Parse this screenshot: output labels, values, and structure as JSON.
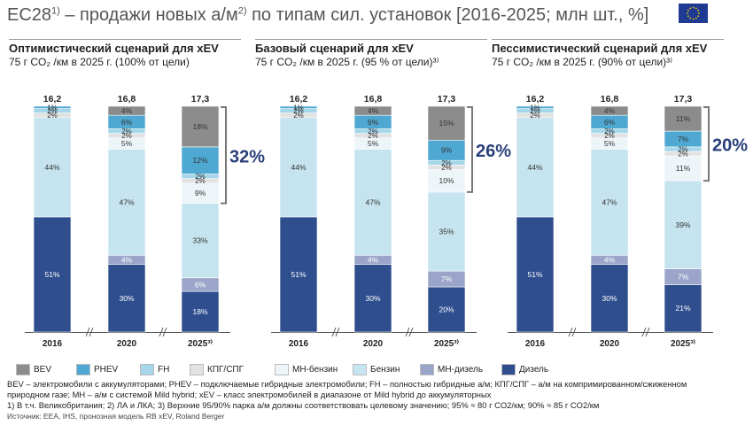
{
  "header": {
    "title_main": "EC28",
    "title_sup1": "1)",
    "title_mid": " – продажи новых а/м",
    "title_sup2": "2)",
    "title_end": " по типам сил. установок [2016-2025; млн шт., %]"
  },
  "colors": {
    "BEV": "#8c8c8c",
    "PHEV": "#4fa8d2",
    "FH": "#a6d6ea",
    "CNG": "#e2e2e2",
    "MH_petrol": "#edf5f9",
    "Petrol": "#c6e4ef",
    "MH_diesel": "#9aa5c9",
    "Diesel": "#2f4e8e",
    "bracket": "#777777",
    "highlight": "#2a3f7a"
  },
  "legend": {
    "items": [
      {
        "key": "BEV",
        "label": "BEV"
      },
      {
        "key": "PHEV",
        "label": "PHEV"
      },
      {
        "key": "FH",
        "label": "FH"
      },
      {
        "key": "CNG",
        "label": "КПГ/СПГ"
      },
      {
        "key": "MH_petrol",
        "label": "MH-бензин"
      },
      {
        "key": "Petrol",
        "label": "Бензин"
      },
      {
        "key": "MH_diesel",
        "label": "MH-дизель"
      },
      {
        "key": "Diesel",
        "label": "Дизель"
      }
    ]
  },
  "footnotes": {
    "line1": "BEV – электромобили с аккумуляторами; PHEV – подключаемые гибридные электромобили; FH – полностью гибридные а/м; КПГ/СПГ – а/м на комприми­рованном/сжиженном",
    "line2": "природном газе; MH – а/м с системой Mild hybrid; xEV – класс электромобилей в диапазоне от Mild hybrid до аккумуляторных",
    "line3": "1) В т.ч. Великобритания; 2) ЛА и ЛКА; 3) Верхние 95/90% парка а/м должны соответствовать целевому значению; 95% ≈ 80 г CO2/км; 90% ≈ 85 г CO2/км",
    "source": "Источник: EEA, IHS, пронозная модель RB xEV, Roland Berger"
  },
  "chart_data": [
    {
      "type": "bar",
      "title": "Оптимистический сценарий для xEV",
      "subtitle": "75 г CO₂ /км в 2025 г. (100% от цели)",
      "categories": [
        "2016",
        "2020",
        "2025"
      ],
      "category_labels": [
        "2016",
        "2020",
        "2025³⁾"
      ],
      "totals": [
        "16,2",
        "16,8",
        "17,3"
      ],
      "stack_order": [
        "Diesel",
        "MH_diesel",
        "Petrol",
        "MH_petrol",
        "CNG",
        "FH",
        "PHEV",
        "BEV"
      ],
      "series": [
        {
          "key": "Diesel",
          "values": [
            51,
            30,
            18
          ],
          "labels": [
            "51%",
            "30%",
            "18%"
          ]
        },
        {
          "key": "MH_diesel",
          "values": [
            0,
            4,
            6
          ],
          "labels": [
            "",
            "4%",
            "6%"
          ]
        },
        {
          "key": "Petrol",
          "values": [
            44,
            47,
            33
          ],
          "labels": [
            "44%",
            "47%",
            "33%"
          ]
        },
        {
          "key": "MH_petrol",
          "values": [
            0,
            5,
            9
          ],
          "labels": [
            "",
            "5%",
            "9%"
          ]
        },
        {
          "key": "CNG",
          "values": [
            2,
            2,
            2
          ],
          "labels": [
            "2%",
            "2%",
            "2%"
          ]
        },
        {
          "key": "FH",
          "values": [
            2,
            2,
            2
          ],
          "labels": [
            "2%",
            "2%",
            "2%"
          ]
        },
        {
          "key": "PHEV",
          "values": [
            1,
            6,
            12
          ],
          "labels": [
            "1%",
            "6%",
            "12%"
          ]
        },
        {
          "key": "BEV",
          "values": [
            0,
            4,
            18
          ],
          "labels": [
            "",
            "4%",
            "18%"
          ]
        }
      ],
      "xev_share": "32%"
    },
    {
      "type": "bar",
      "title": "Базовый сценарий для xEV",
      "subtitle": "75 г CO₂ /км в 2025 г. (95 % от цели)³⁾",
      "categories": [
        "2016",
        "2020",
        "2025"
      ],
      "category_labels": [
        "2016",
        "2020",
        "2025³⁾"
      ],
      "totals": [
        "16,2",
        "16,8",
        "17,3"
      ],
      "stack_order": [
        "Diesel",
        "MH_diesel",
        "Petrol",
        "MH_petrol",
        "CNG",
        "FH",
        "PHEV",
        "BEV"
      ],
      "series": [
        {
          "key": "Diesel",
          "values": [
            51,
            30,
            20
          ],
          "labels": [
            "51%",
            "30%",
            "20%"
          ]
        },
        {
          "key": "MH_diesel",
          "values": [
            0,
            4,
            7
          ],
          "labels": [
            "",
            "4%",
            "7%"
          ]
        },
        {
          "key": "Petrol",
          "values": [
            44,
            47,
            35
          ],
          "labels": [
            "44%",
            "47%",
            "35%"
          ]
        },
        {
          "key": "MH_petrol",
          "values": [
            0,
            5,
            10
          ],
          "labels": [
            "",
            "5%",
            "10%"
          ]
        },
        {
          "key": "CNG",
          "values": [
            2,
            2,
            2
          ],
          "labels": [
            "2%",
            "2%",
            "2%"
          ]
        },
        {
          "key": "FH",
          "values": [
            2,
            2,
            2
          ],
          "labels": [
            "2%",
            "2%",
            "2%"
          ]
        },
        {
          "key": "PHEV",
          "values": [
            1,
            6,
            9
          ],
          "labels": [
            "1%",
            "6%",
            "9%"
          ]
        },
        {
          "key": "BEV",
          "values": [
            0,
            4,
            15
          ],
          "labels": [
            "",
            "4%",
            "15%"
          ]
        }
      ],
      "xev_share": "26%"
    },
    {
      "type": "bar",
      "title": "Пессимистический сценарий для xEV",
      "subtitle": "75 г CO₂ /км в 2025 г. (90% от цели)³⁾",
      "categories": [
        "2016",
        "2020",
        "2025"
      ],
      "category_labels": [
        "2016",
        "2020",
        "2025³⁾"
      ],
      "totals": [
        "16,2",
        "16,8",
        "17,3"
      ],
      "stack_order": [
        "Diesel",
        "MH_diesel",
        "Petrol",
        "MH_petrol",
        "CNG",
        "FH",
        "PHEV",
        "BEV"
      ],
      "series": [
        {
          "key": "Diesel",
          "values": [
            51,
            30,
            21
          ],
          "labels": [
            "51%",
            "30%",
            "21%"
          ]
        },
        {
          "key": "MH_diesel",
          "values": [
            0,
            4,
            7
          ],
          "labels": [
            "",
            "4%",
            "7%"
          ]
        },
        {
          "key": "Petrol",
          "values": [
            44,
            47,
            39
          ],
          "labels": [
            "44%",
            "47%",
            "39%"
          ]
        },
        {
          "key": "MH_petrol",
          "values": [
            0,
            5,
            11
          ],
          "labels": [
            "",
            "5%",
            "11%"
          ]
        },
        {
          "key": "CNG",
          "values": [
            2,
            2,
            2
          ],
          "labels": [
            "2%",
            "2%",
            "2%"
          ]
        },
        {
          "key": "FH",
          "values": [
            2,
            2,
            2
          ],
          "labels": [
            "2%",
            "2%",
            "2%"
          ]
        },
        {
          "key": "PHEV",
          "values": [
            1,
            6,
            7
          ],
          "labels": [
            "1%",
            "6%",
            "7%"
          ]
        },
        {
          "key": "BEV",
          "values": [
            0,
            4,
            11
          ],
          "labels": [
            "",
            "4%",
            "11%"
          ]
        }
      ],
      "xev_share": "20%"
    }
  ]
}
